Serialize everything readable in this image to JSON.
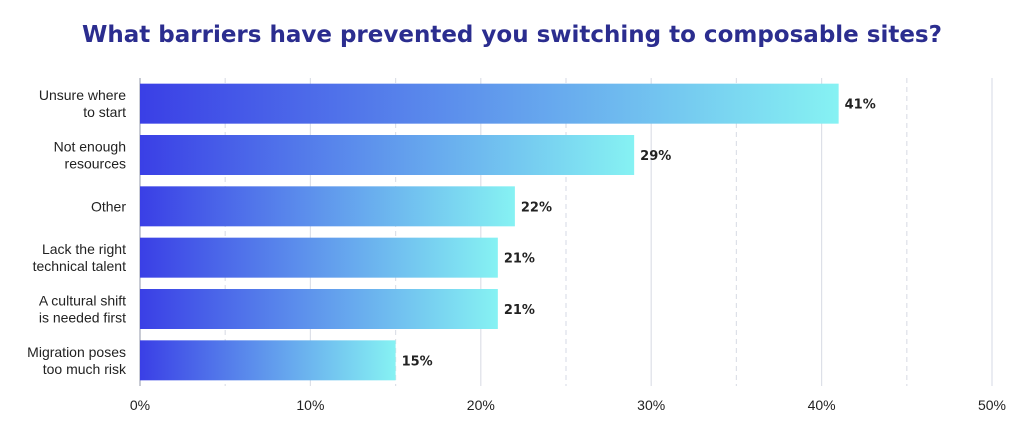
{
  "chart_data": {
    "type": "bar",
    "orientation": "horizontal",
    "title": "What barriers have prevented you switching to composable sites?",
    "categories": [
      [
        "Unsure where",
        "to start"
      ],
      [
        "Not enough",
        "resources"
      ],
      [
        "Other"
      ],
      [
        "Lack the right",
        "technical talent"
      ],
      [
        "A cultural shift",
        "is needed first"
      ],
      [
        "Migration poses",
        "too much risk"
      ]
    ],
    "values": [
      41,
      29,
      22,
      21,
      21,
      15
    ],
    "value_labels": [
      "41%",
      "29%",
      "22%",
      "21%",
      "21%",
      "15%"
    ],
    "xlim": [
      0,
      50
    ],
    "x_ticks": [
      0,
      10,
      20,
      30,
      40,
      50
    ],
    "x_tick_labels": [
      "0%",
      "10%",
      "20%",
      "30%",
      "40%",
      "50%"
    ],
    "grid": "vertical",
    "colors": {
      "bar_start": "#3a3fe6",
      "bar_end": "#86f2f3",
      "title": "#2b2d8f",
      "text": "#222222",
      "grid": "#dde0e8"
    }
  }
}
